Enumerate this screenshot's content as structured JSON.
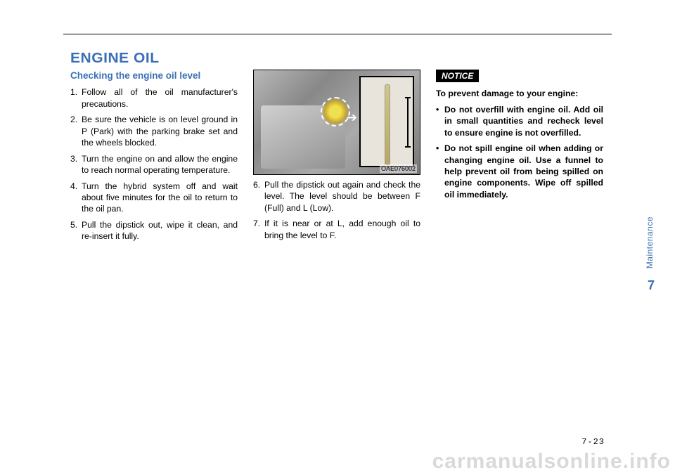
{
  "header_rule_color": "#000000",
  "section": {
    "title": "ENGINE OIL",
    "subheading": "Checking the engine oil level"
  },
  "col1_items": [
    {
      "n": "1.",
      "t": "Follow all of the oil manufacturer's precautions."
    },
    {
      "n": "2.",
      "t": "Be sure the vehicle is on level ground in P (Park) with the parking brake set and the wheels blocked."
    },
    {
      "n": "3.",
      "t": "Turn the engine on and allow the engine to reach normal operating temperature."
    },
    {
      "n": "4.",
      "t": "Turn the hybrid system off and wait about five minutes for the oil to return to the oil pan."
    },
    {
      "n": "5.",
      "t": "Pull the dipstick out, wipe it clean, and re-insert it fully."
    }
  ],
  "figure": {
    "code": "OAE076002"
  },
  "col2_items": [
    {
      "n": "6.",
      "t": "Pull the dipstick out again and check the level. The level should be between F (Full) and L (Low)."
    },
    {
      "n": "7.",
      "t": "If it is near or at L, add enough oil to bring the level to F."
    }
  ],
  "notice": {
    "badge": "NOTICE",
    "lead": "To prevent damage to your engine:",
    "bullets": [
      "Do not overfill with engine oil. Add oil in small quantities and recheck level to ensure engine is not overfilled.",
      "Do not spill engine oil when adding or changing engine oil. Use a funnel to help prevent oil from being spilled on engine components. Wipe off spilled oil immediately."
    ]
  },
  "side": {
    "label": "Maintenance",
    "chapter": "7"
  },
  "page_number": "7-23",
  "watermark": "carmanualsonline.info",
  "colors": {
    "accent": "#3b6fb5",
    "text": "#000000",
    "watermark": "#d9d9d9"
  }
}
